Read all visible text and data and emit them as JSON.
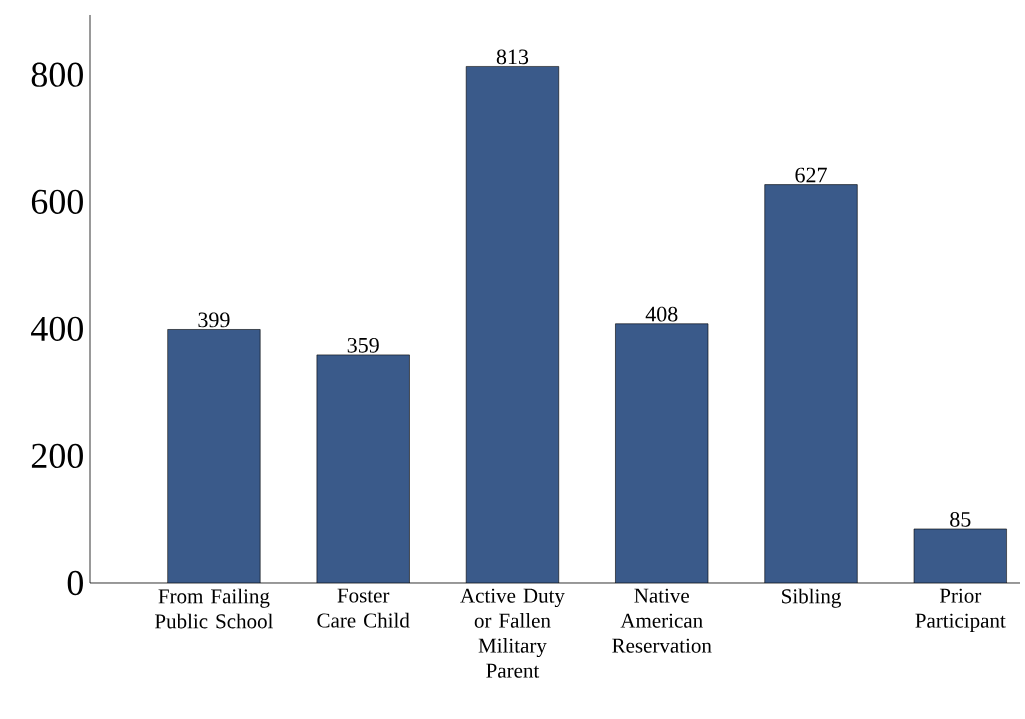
{
  "chart_data": {
    "type": "bar",
    "categories": [
      "From Failing Public School",
      "Foster Care Child",
      "Active Duty or Fallen Military Parent",
      "Native American Reservation",
      "Sibling",
      "Prior Participant"
    ],
    "values": [
      399,
      359,
      813,
      408,
      627,
      85
    ],
    "color": "#3a5a8a",
    "ylim": [
      0,
      894
    ],
    "yticks": [
      0,
      200,
      400,
      600,
      800
    ],
    "data_labels": true,
    "grid": false
  }
}
